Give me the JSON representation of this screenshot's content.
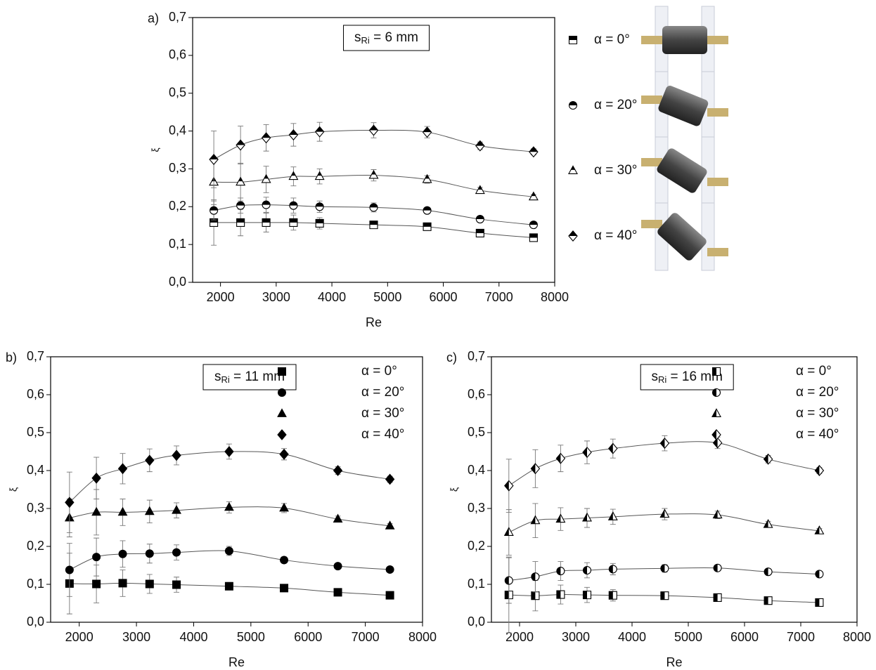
{
  "chart_data": [
    {
      "type": "scatter",
      "panel_label": "a)",
      "annotation": {
        "symbol": "s",
        "subscript": "Ri",
        "text": " = 6 mm"
      },
      "x_label": "Re",
      "y_label": "ξ",
      "x": [
        1880,
        2360,
        2820,
        3310,
        3780,
        4750,
        5710,
        6660,
        7620
      ],
      "xlim": [
        1500,
        8000
      ],
      "xticks": [
        2000,
        3000,
        4000,
        5000,
        6000,
        7000,
        8000
      ],
      "ylim": [
        0,
        0.7
      ],
      "yticks": [
        {
          "value": 0,
          "label": "0,0"
        },
        {
          "value": 0.1,
          "label": "0,1"
        },
        {
          "value": 0.2,
          "label": "0,2"
        },
        {
          "value": 0.3,
          "label": "0,3"
        },
        {
          "value": 0.4,
          "label": "0,4"
        },
        {
          "value": 0.5,
          "label": "0,5"
        },
        {
          "value": 0.6,
          "label": "0,6"
        },
        {
          "value": 0.7,
          "label": "0,7"
        }
      ],
      "marker_fill": "top",
      "legend": "outside right",
      "series": [
        {
          "name": "α = 0°",
          "marker": "square",
          "color": "#000000",
          "values": [
            0.158,
            0.158,
            0.158,
            0.158,
            0.156,
            0.152,
            0.147,
            0.13,
            0.118
          ],
          "yerr": [
            0.06,
            0.035,
            0.025,
            0.02,
            0.015,
            0.008,
            0.006,
            0.005,
            0.005
          ]
        },
        {
          "name": "α = 20°",
          "marker": "circle",
          "color": "#000000",
          "values": [
            0.19,
            0.203,
            0.205,
            0.203,
            0.2,
            0.198,
            0.19,
            0.167,
            0.152
          ],
          "yerr": [
            0.025,
            0.02,
            0.02,
            0.02,
            0.015,
            0.012,
            0.008,
            0.006,
            0.005
          ]
        },
        {
          "name": "α = 30°",
          "marker": "triangle",
          "color": "#000000",
          "values": [
            0.265,
            0.265,
            0.272,
            0.28,
            0.28,
            0.283,
            0.272,
            0.243,
            0.226
          ],
          "yerr": [
            0.06,
            0.05,
            0.035,
            0.025,
            0.02,
            0.015,
            0.01,
            0.008,
            0.006
          ]
        },
        {
          "name": "α = 40°",
          "marker": "diamond",
          "color": "#000000",
          "values": [
            0.325,
            0.363,
            0.382,
            0.39,
            0.398,
            0.402,
            0.397,
            0.361,
            0.345
          ],
          "yerr": [
            0.075,
            0.05,
            0.035,
            0.03,
            0.025,
            0.02,
            0.015,
            0.01,
            0.008
          ]
        }
      ]
    },
    {
      "type": "scatter",
      "panel_label": "b)",
      "annotation": {
        "symbol": "s",
        "subscript": "Ri",
        "text": " = 11 mm"
      },
      "x_label": "Re",
      "y_label": "ξ",
      "x": [
        1830,
        2300,
        2760,
        3230,
        3700,
        4620,
        5580,
        6520,
        7430
      ],
      "xlim": [
        1500,
        8000
      ],
      "xticks": [
        2000,
        3000,
        4000,
        5000,
        6000,
        7000,
        8000
      ],
      "ylim": [
        0,
        0.7
      ],
      "yticks": [
        {
          "value": 0,
          "label": "0,0"
        },
        {
          "value": 0.1,
          "label": "0,1"
        },
        {
          "value": 0.2,
          "label": "0,2"
        },
        {
          "value": 0.3,
          "label": "0,3"
        },
        {
          "value": 0.4,
          "label": "0,4"
        },
        {
          "value": 0.5,
          "label": "0,5"
        },
        {
          "value": 0.6,
          "label": "0,6"
        },
        {
          "value": 0.7,
          "label": "0,7"
        }
      ],
      "marker_fill": "full",
      "legend": "upper right",
      "series": [
        {
          "name": "α = 0°",
          "marker": "square",
          "color": "#000000",
          "values": [
            0.102,
            0.101,
            0.103,
            0.101,
            0.099,
            0.095,
            0.09,
            0.079,
            0.071
          ],
          "yerr": [
            0.08,
            0.05,
            0.035,
            0.025,
            0.02,
            0.01,
            0.008,
            0.006,
            0.005
          ]
        },
        {
          "name": "α = 20°",
          "marker": "circle",
          "color": "#000000",
          "values": [
            0.138,
            0.172,
            0.18,
            0.181,
            0.184,
            0.188,
            0.164,
            0.148,
            0.139
          ],
          "yerr": [
            0.07,
            0.05,
            0.035,
            0.025,
            0.02,
            0.012,
            0.008,
            0.006,
            0.005
          ]
        },
        {
          "name": "α = 30°",
          "marker": "triangle",
          "color": "#000000",
          "values": [
            0.275,
            0.29,
            0.29,
            0.292,
            0.295,
            0.303,
            0.301,
            0.272,
            0.254
          ],
          "yerr": [
            0.05,
            0.06,
            0.035,
            0.03,
            0.02,
            0.015,
            0.012,
            0.008,
            0.006
          ]
        },
        {
          "name": "α = 40°",
          "marker": "diamond",
          "color": "#000000",
          "values": [
            0.316,
            0.38,
            0.405,
            0.427,
            0.44,
            0.45,
            0.443,
            0.4,
            0.377
          ],
          "yerr": [
            0.08,
            0.055,
            0.04,
            0.03,
            0.025,
            0.02,
            0.015,
            0.01,
            0.008
          ]
        }
      ]
    },
    {
      "type": "scatter",
      "panel_label": "c)",
      "annotation": {
        "symbol": "s",
        "subscript": "Ri",
        "text": " = 16 mm"
      },
      "x_label": "Re",
      "y_label": "ξ",
      "x": [
        1810,
        2280,
        2730,
        3200,
        3660,
        4580,
        5520,
        6420,
        7330
      ],
      "xlim": [
        1500,
        8000
      ],
      "xticks": [
        2000,
        3000,
        4000,
        5000,
        6000,
        7000,
        8000
      ],
      "ylim": [
        0,
        0.7
      ],
      "yticks": [
        {
          "value": 0,
          "label": "0,0"
        },
        {
          "value": 0.1,
          "label": "0,1"
        },
        {
          "value": 0.2,
          "label": "0,2"
        },
        {
          "value": 0.3,
          "label": "0,3"
        },
        {
          "value": 0.4,
          "label": "0,4"
        },
        {
          "value": 0.5,
          "label": "0,5"
        },
        {
          "value": 0.6,
          "label": "0,6"
        },
        {
          "value": 0.7,
          "label": "0,7"
        }
      ],
      "marker_fill": "left",
      "legend": "upper right",
      "series": [
        {
          "name": "α = 0°",
          "marker": "square",
          "color": "#000000",
          "values": [
            0.072,
            0.07,
            0.073,
            0.072,
            0.071,
            0.07,
            0.065,
            0.057,
            0.052
          ],
          "yerr": [
            0.1,
            0.04,
            0.025,
            0.02,
            0.015,
            0.01,
            0.008,
            0.006,
            0.005
          ]
        },
        {
          "name": "α = 20°",
          "marker": "circle",
          "color": "#000000",
          "values": [
            0.11,
            0.12,
            0.135,
            0.137,
            0.14,
            0.142,
            0.143,
            0.133,
            0.127
          ],
          "yerr": [
            0.06,
            0.04,
            0.025,
            0.02,
            0.015,
            0.01,
            0.008,
            0.006,
            0.005
          ]
        },
        {
          "name": "α = 30°",
          "marker": "triangle",
          "color": "#000000",
          "values": [
            0.237,
            0.268,
            0.272,
            0.275,
            0.278,
            0.285,
            0.283,
            0.258,
            0.241
          ],
          "yerr": [
            0.06,
            0.045,
            0.03,
            0.025,
            0.02,
            0.015,
            0.01,
            0.008,
            0.006
          ]
        },
        {
          "name": "α = 40°",
          "marker": "diamond",
          "color": "#000000",
          "values": [
            0.36,
            0.405,
            0.432,
            0.448,
            0.458,
            0.472,
            0.473,
            0.43,
            0.4
          ],
          "yerr": [
            0.07,
            0.05,
            0.035,
            0.03,
            0.025,
            0.02,
            0.015,
            0.01,
            0.008
          ]
        }
      ]
    }
  ]
}
